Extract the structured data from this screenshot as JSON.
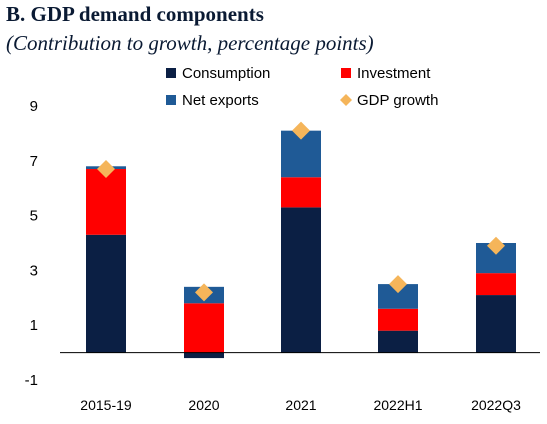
{
  "title": "B. GDP demand components",
  "subtitle": "(Contribution to growth, percentage points)",
  "colors": {
    "consumption": "#0b1f44",
    "investment": "#ff0000",
    "net_exports": "#1f5a96",
    "gdp_growth": "#f5b55a"
  },
  "chart_data": {
    "type": "bar",
    "stacked": true,
    "title": "B. GDP demand components",
    "subtitle": "(Contribution to growth, percentage points)",
    "categories": [
      "2015-19",
      "2020",
      "2021",
      "2022H1",
      "2022Q3"
    ],
    "series": [
      {
        "name": "Consumption",
        "kind": "bar",
        "values": [
          4.3,
          -0.2,
          5.3,
          0.8,
          2.1
        ]
      },
      {
        "name": "Investment",
        "kind": "bar",
        "values": [
          2.4,
          1.8,
          1.1,
          0.8,
          0.8
        ]
      },
      {
        "name": "Net exports",
        "kind": "bar",
        "values": [
          0.1,
          0.6,
          1.7,
          0.9,
          1.1
        ]
      },
      {
        "name": "GDP growth",
        "kind": "marker",
        "values": [
          6.7,
          2.2,
          8.1,
          2.5,
          3.9
        ]
      }
    ],
    "yticks": [
      -1,
      1,
      3,
      5,
      7,
      9
    ],
    "ylim": [
      -1,
      9
    ],
    "legend_position": "top",
    "grid": false
  }
}
